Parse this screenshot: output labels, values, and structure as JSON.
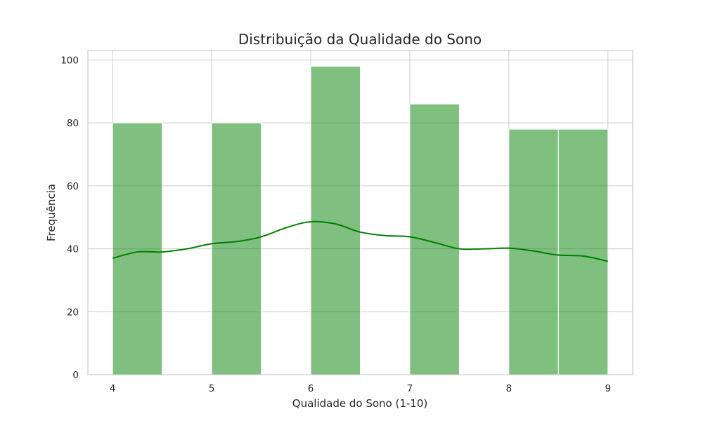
{
  "chart_data": {
    "type": "bar",
    "title": "Distribuição da Qualidade do Sono",
    "xlabel": "Qualidade do Sono (1-10)",
    "ylabel": "Frequência",
    "xlim": [
      3.75,
      9.25
    ],
    "ylim": [
      0,
      103
    ],
    "grid": true,
    "x_ticks": [
      4,
      5,
      6,
      7,
      8,
      9
    ],
    "y_ticks": [
      0,
      20,
      40,
      60,
      80,
      100
    ],
    "bars": [
      {
        "x0": 4.0,
        "x1": 4.5,
        "value": 80
      },
      {
        "x0": 4.5,
        "x1": 5.0,
        "value": 0
      },
      {
        "x0": 5.0,
        "x1": 5.5,
        "value": 80
      },
      {
        "x0": 5.5,
        "x1": 6.0,
        "value": 0
      },
      {
        "x0": 6.0,
        "x1": 6.5,
        "value": 98
      },
      {
        "x0": 6.5,
        "x1": 7.0,
        "value": 0
      },
      {
        "x0": 7.0,
        "x1": 7.5,
        "value": 86
      },
      {
        "x0": 7.5,
        "x1": 8.0,
        "value": 0
      },
      {
        "x0": 8.0,
        "x1": 8.5,
        "value": 78
      },
      {
        "x0": 8.5,
        "x1": 9.0,
        "value": 78
      }
    ],
    "kde": {
      "x": [
        4.0,
        4.25,
        4.5,
        4.75,
        5.0,
        5.25,
        5.5,
        5.75,
        6.0,
        6.25,
        6.5,
        6.75,
        7.0,
        7.25,
        7.5,
        7.75,
        8.0,
        8.25,
        8.5,
        8.75,
        9.0
      ],
      "y": [
        37,
        39,
        39,
        40,
        41.6,
        42.3,
        43.8,
        46.7,
        48.6,
        47.9,
        45.3,
        44.2,
        43.8,
        42,
        40,
        40,
        40.2,
        39.3,
        38,
        37.7,
        36
      ]
    },
    "colors": {
      "bar": "#008000",
      "kde": "#008000",
      "grid": "#cccccc"
    }
  }
}
